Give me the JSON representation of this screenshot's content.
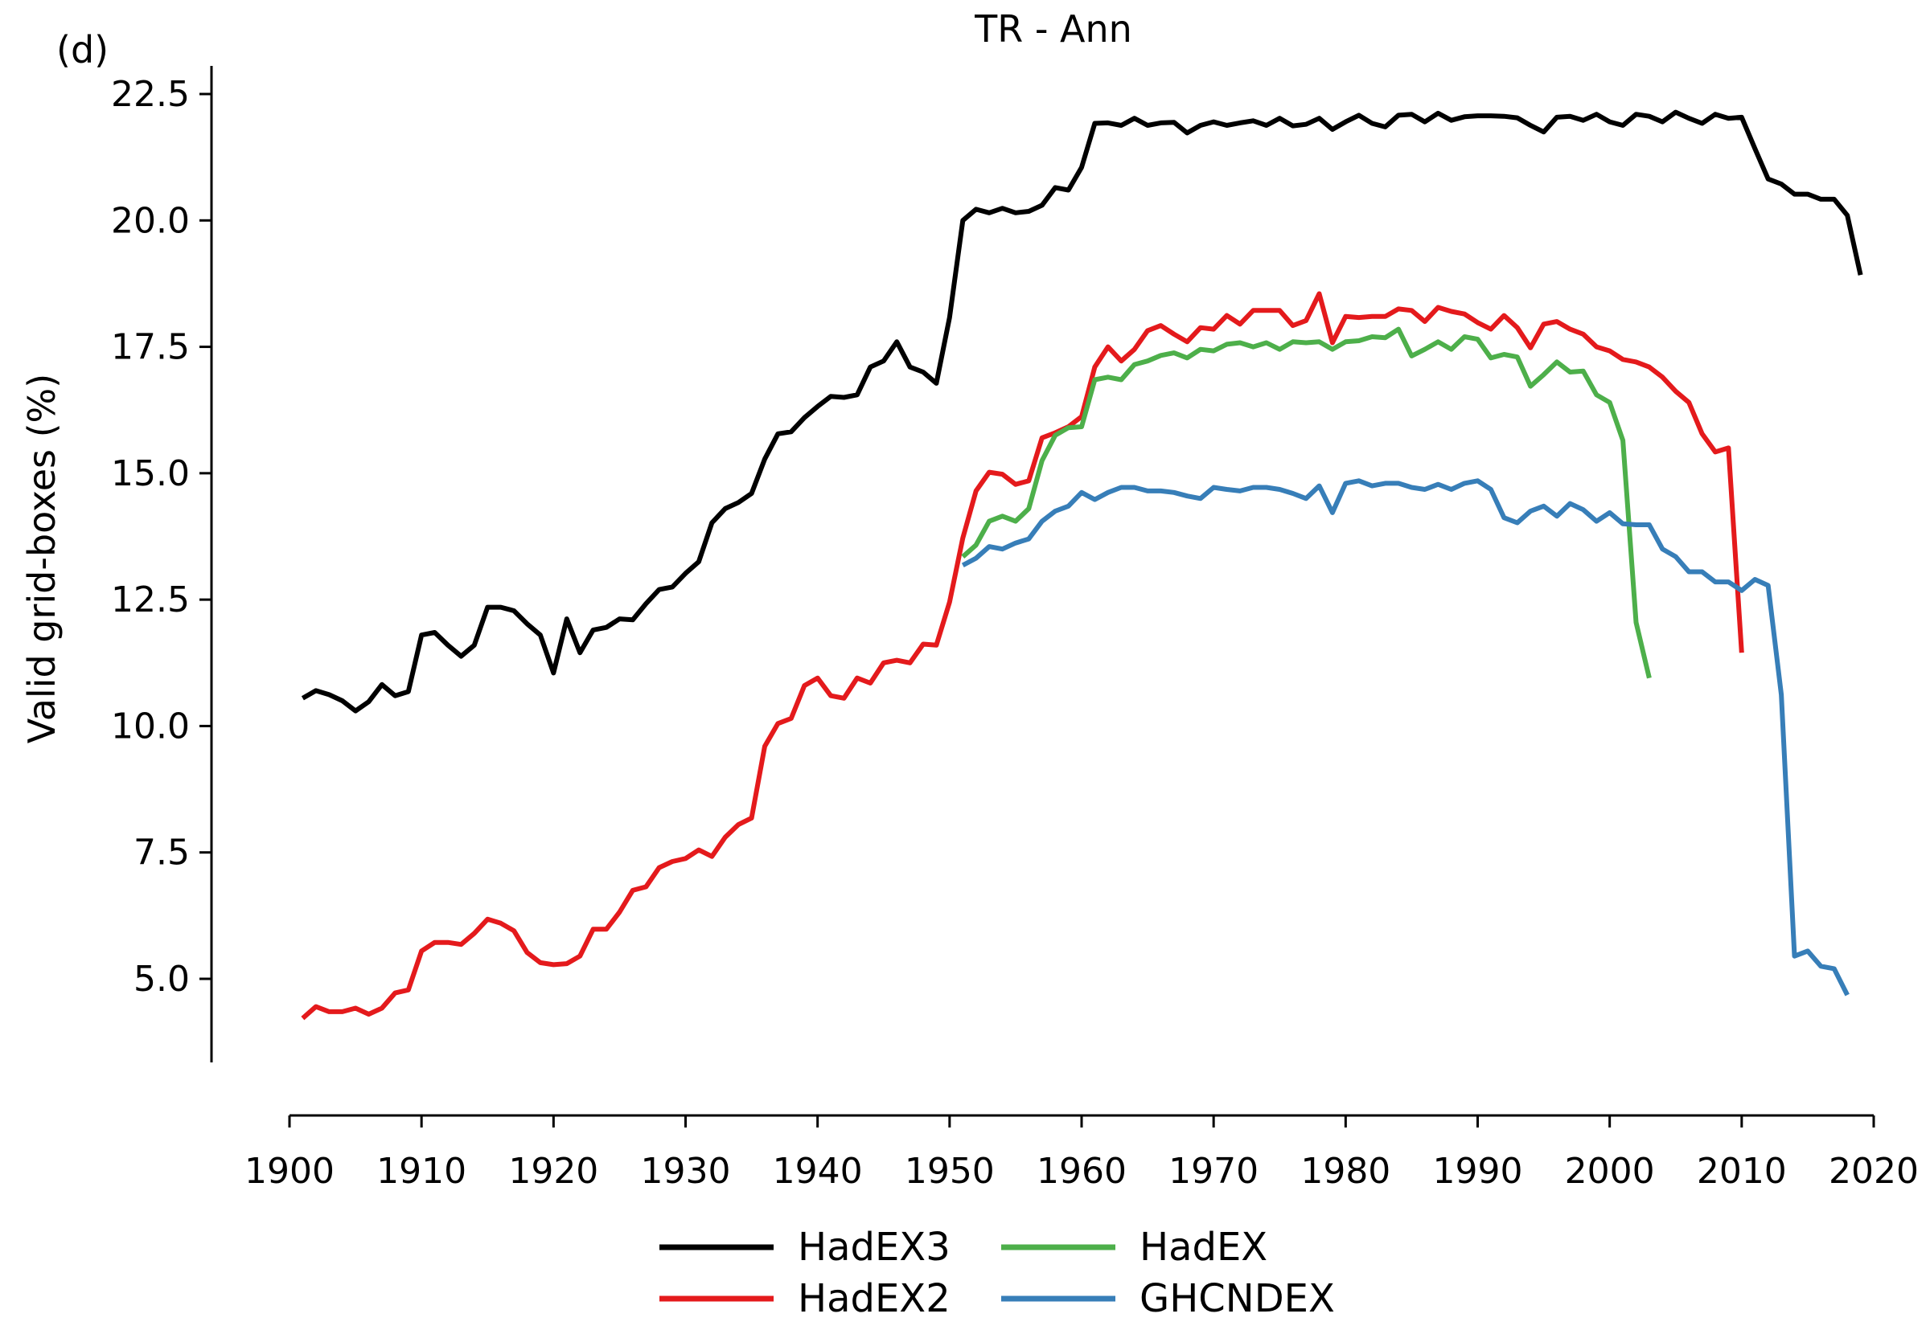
{
  "chart_data": {
    "type": "line",
    "title": "TR - Ann",
    "panel_label": "(d)",
    "xlabel": "",
    "ylabel": "Valid grid-boxes (%)",
    "xlim": [
      1900,
      2020
    ],
    "ylim": [
      3.3,
      23.0
    ],
    "xticks": [
      1900,
      1910,
      1920,
      1930,
      1940,
      1950,
      1960,
      1970,
      1980,
      1990,
      2000,
      2010,
      2020
    ],
    "yticks": [
      5.0,
      7.5,
      10.0,
      12.5,
      15.0,
      17.5,
      20.0,
      22.5
    ],
    "ytick_labels": [
      "5.0",
      "7.5",
      "10.0",
      "12.5",
      "15.0",
      "17.5",
      "20.0",
      "22.5"
    ],
    "grid": false,
    "legend": {
      "placement": "bottom-center",
      "columns": 2
    },
    "series": [
      {
        "name": "HadEX3",
        "color": "#000000",
        "x_start": 1901,
        "values": [
          10.55,
          10.7,
          10.62,
          10.5,
          10.3,
          10.48,
          10.82,
          10.6,
          10.68,
          11.8,
          11.85,
          11.6,
          11.38,
          11.6,
          12.35,
          12.35,
          12.28,
          12.02,
          11.8,
          11.05,
          12.12,
          11.45,
          11.9,
          11.95,
          12.12,
          12.1,
          12.42,
          12.7,
          12.75,
          13.02,
          13.25,
          14.02,
          14.3,
          14.42,
          14.6,
          15.28,
          15.78,
          15.82,
          16.1,
          16.32,
          16.52,
          16.5,
          16.55,
          17.1,
          17.22,
          17.6,
          17.1,
          17.0,
          16.78,
          18.08,
          20.0,
          20.22,
          20.15,
          20.24,
          20.15,
          20.18,
          20.3,
          20.65,
          20.6,
          21.05,
          21.92,
          21.93,
          21.88,
          22.02,
          21.88,
          21.93,
          21.94,
          21.73,
          21.88,
          21.95,
          21.88,
          21.93,
          21.97,
          21.88,
          22.02,
          21.87,
          21.9,
          22.02,
          21.8,
          21.95,
          22.08,
          21.92,
          21.85,
          22.08,
          22.1,
          21.95,
          22.12,
          21.98,
          22.05,
          22.07,
          22.07,
          22.06,
          22.03,
          21.88,
          21.75,
          22.04,
          22.06,
          21.98,
          22.1,
          21.95,
          21.88,
          22.1,
          22.06,
          21.95,
          22.14,
          22.02,
          21.92,
          22.1,
          22.02,
          22.04,
          21.42,
          20.82,
          20.72,
          20.52,
          20.52,
          20.42,
          20.42,
          20.1,
          18.92
        ]
      },
      {
        "name": "HadEX2",
        "color": "#e41a1c",
        "x_start": 1901,
        "values": [
          4.22,
          4.45,
          4.35,
          4.35,
          4.42,
          4.3,
          4.42,
          4.72,
          4.78,
          5.55,
          5.72,
          5.72,
          5.68,
          5.9,
          6.18,
          6.1,
          5.95,
          5.52,
          5.32,
          5.28,
          5.3,
          5.45,
          5.98,
          5.98,
          6.32,
          6.75,
          6.82,
          7.2,
          7.32,
          7.38,
          7.55,
          7.42,
          7.8,
          8.05,
          8.18,
          9.6,
          10.05,
          10.15,
          10.8,
          10.95,
          10.6,
          10.55,
          10.95,
          10.85,
          11.25,
          11.3,
          11.25,
          11.62,
          11.6,
          12.45,
          13.72,
          14.65,
          15.02,
          14.98,
          14.78,
          14.85,
          15.7,
          15.8,
          15.92,
          16.12,
          17.1,
          17.5,
          17.22,
          17.45,
          17.82,
          17.92,
          17.75,
          17.6,
          17.88,
          17.85,
          18.12,
          17.95,
          18.22,
          18.22,
          18.22,
          17.92,
          18.02,
          18.55,
          17.58,
          18.1,
          18.08,
          18.1,
          18.1,
          18.25,
          18.22,
          18.0,
          18.28,
          18.2,
          18.15,
          17.98,
          17.85,
          18.12,
          17.88,
          17.48,
          17.95,
          18.0,
          17.85,
          17.75,
          17.5,
          17.42,
          17.25,
          17.2,
          17.1,
          16.9,
          16.62,
          16.4,
          15.78,
          15.42,
          15.5,
          11.45
        ]
      },
      {
        "name": "HadEX",
        "color": "#4daf4a",
        "x_start": 1951,
        "values": [
          13.35,
          13.58,
          14.05,
          14.15,
          14.05,
          14.3,
          15.25,
          15.75,
          15.9,
          15.92,
          16.85,
          16.9,
          16.85,
          17.15,
          17.22,
          17.33,
          17.38,
          17.28,
          17.45,
          17.42,
          17.55,
          17.58,
          17.5,
          17.58,
          17.45,
          17.6,
          17.58,
          17.6,
          17.45,
          17.6,
          17.62,
          17.7,
          17.68,
          17.85,
          17.32,
          17.45,
          17.6,
          17.45,
          17.7,
          17.65,
          17.28,
          17.35,
          17.3,
          16.72,
          16.95,
          17.2,
          17.0,
          17.02,
          16.55,
          16.4,
          15.65,
          12.05,
          10.95
        ]
      },
      {
        "name": "GHCNDEX",
        "color": "#377eb8",
        "x_start": 1951,
        "values": [
          13.18,
          13.32,
          13.55,
          13.5,
          13.62,
          13.7,
          14.05,
          14.25,
          14.35,
          14.62,
          14.48,
          14.62,
          14.72,
          14.72,
          14.65,
          14.65,
          14.62,
          14.55,
          14.5,
          14.72,
          14.68,
          14.65,
          14.72,
          14.72,
          14.68,
          14.6,
          14.5,
          14.75,
          14.22,
          14.8,
          14.85,
          14.75,
          14.8,
          14.8,
          14.72,
          14.68,
          14.78,
          14.68,
          14.8,
          14.85,
          14.68,
          14.12,
          14.02,
          14.25,
          14.35,
          14.15,
          14.4,
          14.28,
          14.05,
          14.22,
          14.0,
          13.98,
          13.98,
          13.5,
          13.35,
          13.05,
          13.05,
          12.85,
          12.85,
          12.68,
          12.9,
          12.78,
          10.62,
          5.45,
          5.55,
          5.25,
          5.2,
          4.68
        ]
      }
    ]
  }
}
